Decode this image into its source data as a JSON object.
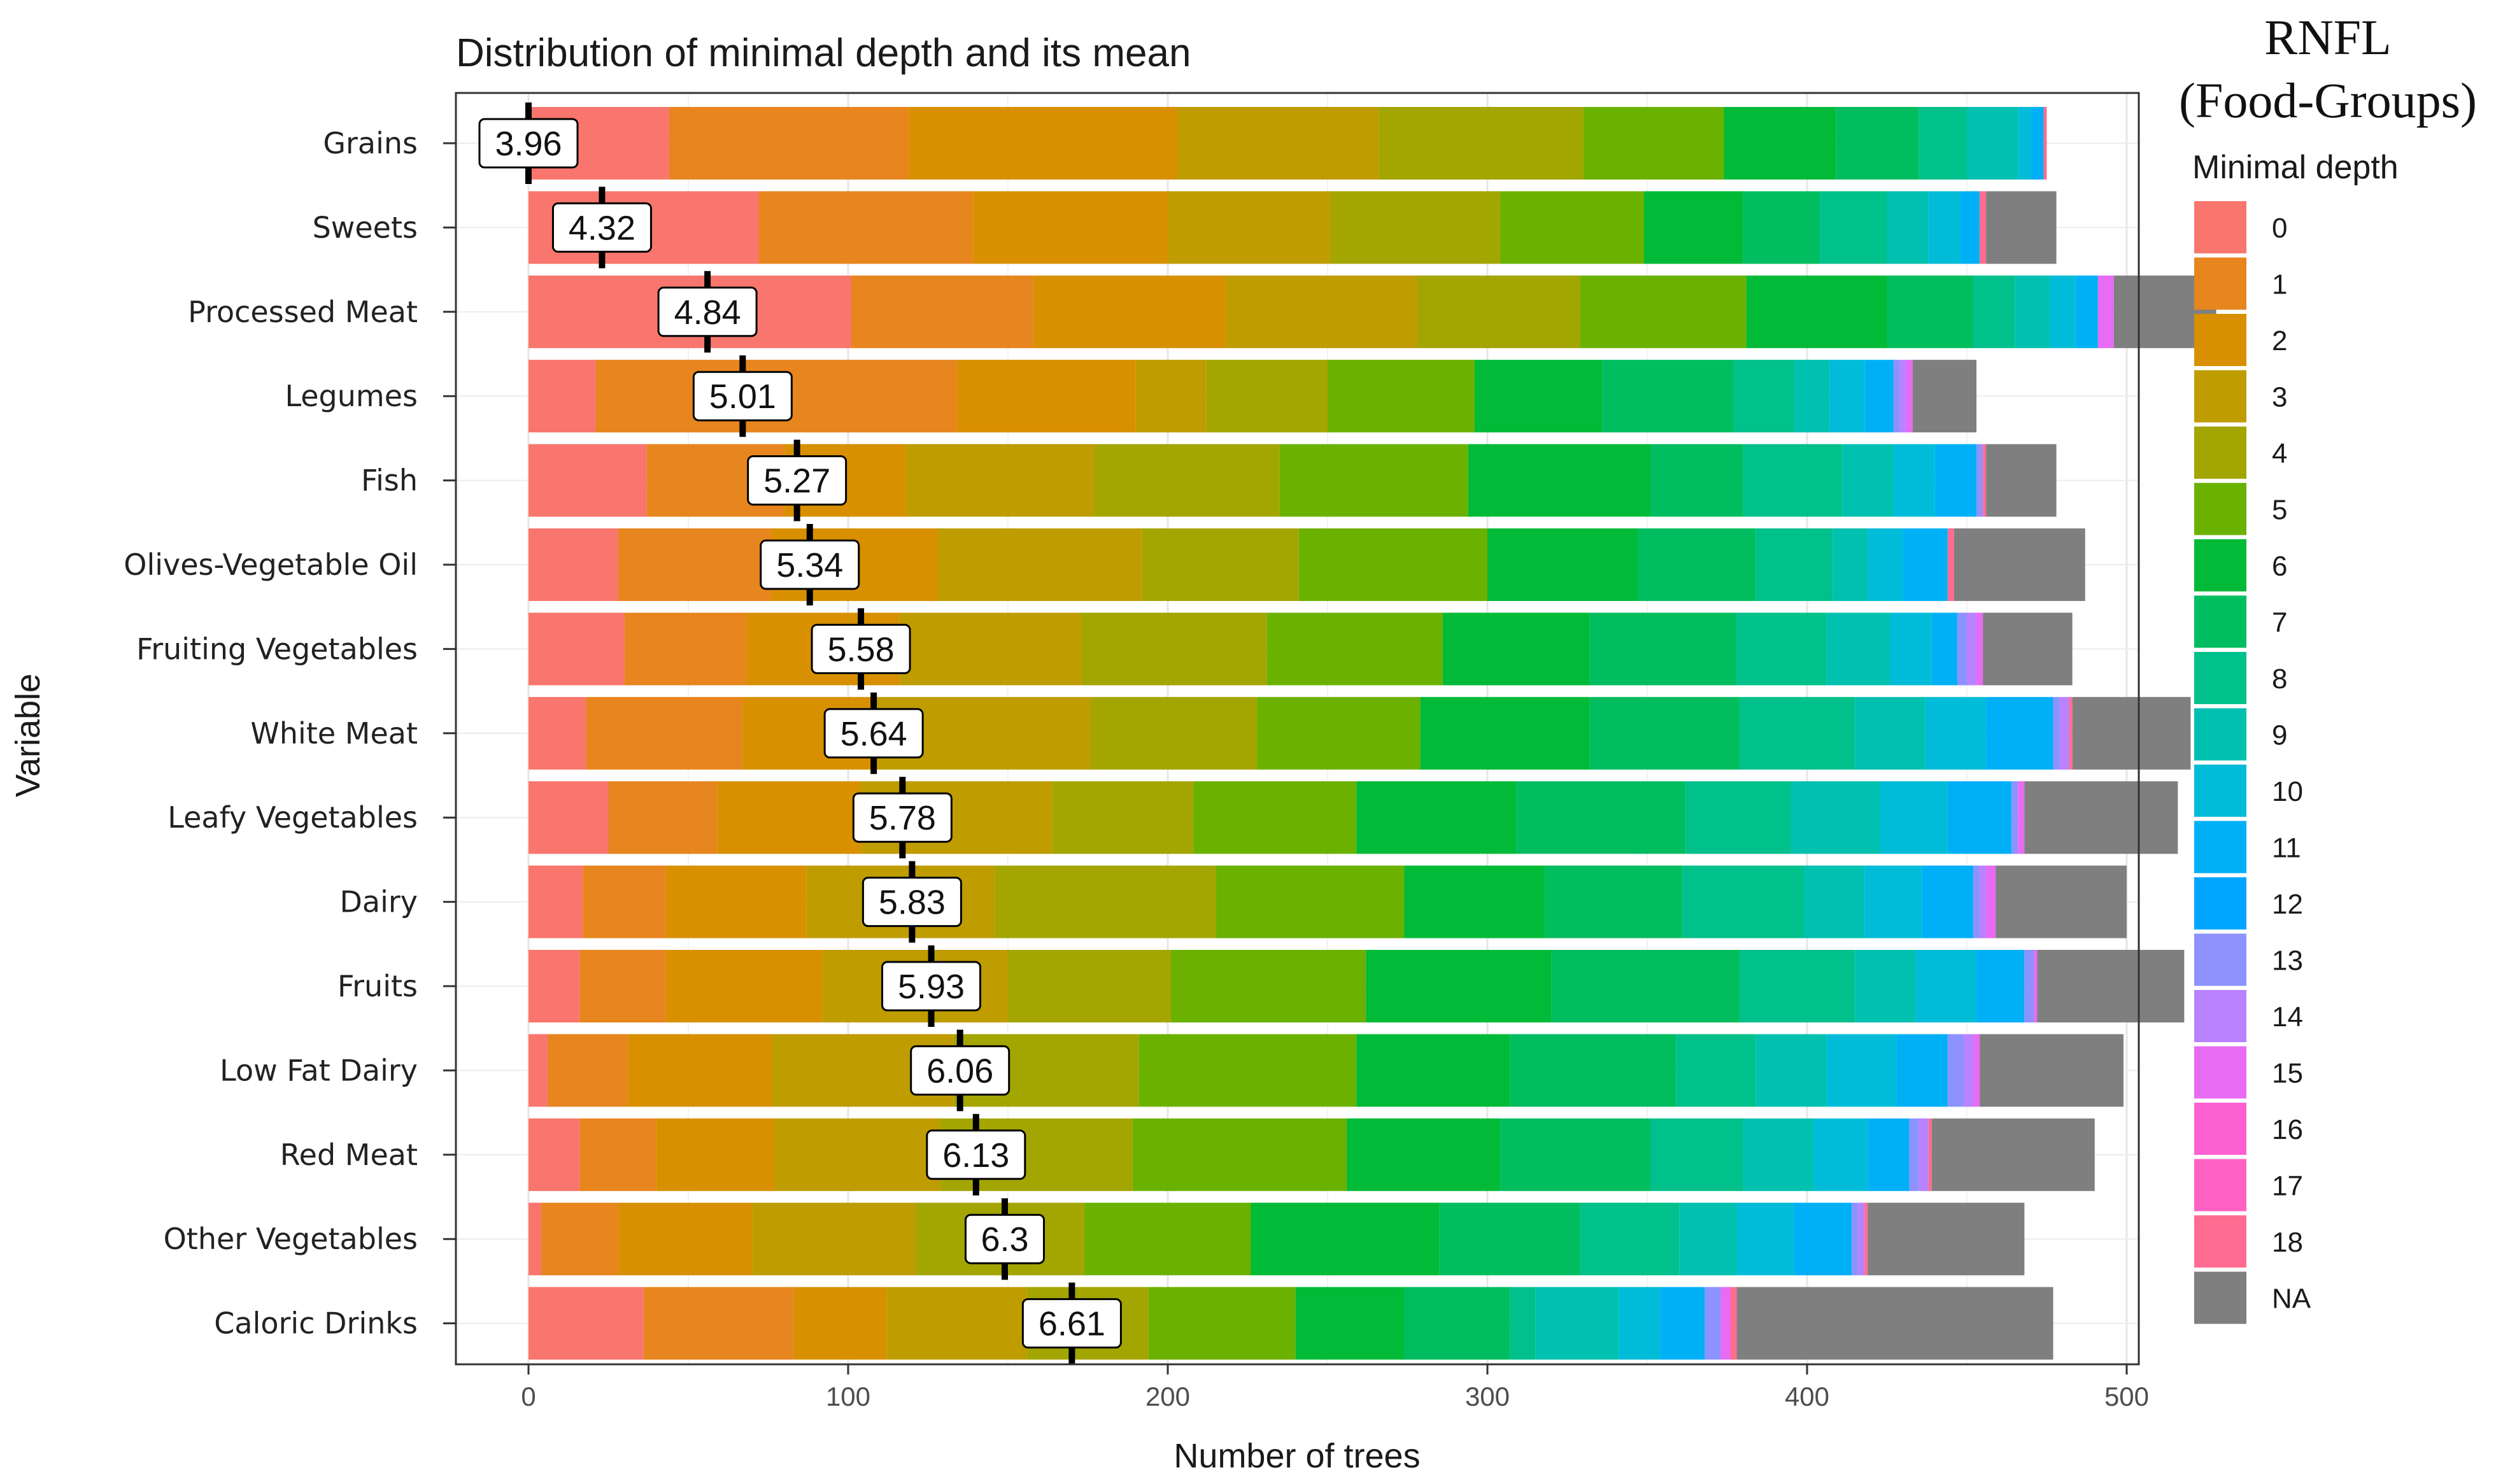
{
  "chart_data": {
    "type": "bar",
    "orientation": "horizontal",
    "stacked": true,
    "title": "Distribution of minimal depth and its mean",
    "overlay_title": [
      "RNFL",
      "(Food-Groups)"
    ],
    "xlabel": "Number of trees",
    "ylabel": "Variable",
    "xlim": [
      -23,
      501
    ],
    "xticks": [
      0,
      100,
      200,
      300,
      400,
      500
    ],
    "grid": true,
    "legend": {
      "title": "Minimal depth",
      "placement": "right",
      "labels": [
        "0",
        "1",
        "2",
        "3",
        "4",
        "5",
        "6",
        "7",
        "8",
        "9",
        "10",
        "11",
        "12",
        "13",
        "14",
        "15",
        "16",
        "17",
        "18",
        "NA"
      ],
      "colors": [
        "#F8766D",
        "#E7851E",
        "#D89000",
        "#BF9C00",
        "#A3A500",
        "#6BB100",
        "#00BA38",
        "#00BD5F",
        "#00C08B",
        "#00C0AF",
        "#00BCD8",
        "#00B0F6",
        "#00A5FF",
        "#8D92FF",
        "#B983FF",
        "#E76BF3",
        "#FD61D1",
        "#FF61C3",
        "#FF6C91",
        "#7F7F7F"
      ]
    },
    "categories": [
      "Grains",
      "Sweets",
      "Processed Meat",
      "Legumes",
      "Fish",
      "Olives-Vegetable Oil",
      "Fruiting  Vegetables",
      "White Meat",
      "Leafy Vegetables",
      "Dairy",
      "Fruits",
      "Low Fat Dairy",
      "Red Meat",
      "Other Vegetables",
      "Caloric Drinks"
    ],
    "means": [
      "3.96",
      "4.32",
      "4.84",
      "5.01",
      "5.27",
      "5.34",
      "5.58",
      "5.64",
      "5.78",
      "5.83",
      "5.93",
      "6.06",
      "6.13",
      "6.3",
      "6.61"
    ],
    "mean_positions": [
      0,
      23,
      56,
      67,
      84,
      88,
      104,
      108,
      117,
      120,
      126,
      135,
      140,
      149,
      170
    ],
    "segments": [
      [
        44,
        75,
        84,
        63,
        64,
        44,
        35,
        26,
        15,
        16,
        4,
        4,
        0,
        0,
        0,
        0,
        0,
        0,
        1,
        0
      ],
      [
        72,
        67,
        61,
        51,
        53,
        45,
        31,
        24,
        21,
        13,
        10,
        6,
        0,
        0,
        0,
        0,
        0,
        0,
        2,
        22
      ],
      [
        101,
        57,
        60,
        60,
        51,
        52,
        44,
        27,
        13,
        11,
        8,
        7,
        0,
        0,
        0,
        5,
        0,
        0,
        0,
        32
      ],
      [
        21,
        113,
        56,
        22,
        38,
        46,
        40,
        41,
        19,
        11,
        11,
        9,
        0,
        2,
        2,
        2,
        0,
        0,
        0,
        20
      ],
      [
        37,
        43,
        38,
        59,
        58,
        59,
        57,
        29,
        31,
        16,
        13,
        13,
        0,
        2,
        0,
        0,
        0,
        0,
        1,
        22
      ],
      [
        28,
        48,
        52,
        64,
        49,
        59,
        47,
        37,
        24,
        11,
        11,
        14,
        0,
        0,
        0,
        0,
        0,
        0,
        2,
        41
      ],
      [
        30,
        38,
        48,
        57,
        58,
        55,
        46,
        46,
        28,
        20,
        13,
        8,
        0,
        3,
        3,
        2,
        0,
        0,
        0,
        28
      ],
      [
        18,
        49,
        42,
        67,
        52,
        51,
        53,
        47,
        36,
        22,
        19,
        21,
        0,
        2,
        3,
        0,
        0,
        0,
        1,
        37
      ],
      [
        25,
        34,
        45,
        60,
        44,
        51,
        50,
        53,
        33,
        28,
        21,
        20,
        0,
        2,
        0,
        2,
        0,
        0,
        0,
        48
      ],
      [
        17,
        26,
        44,
        59,
        69,
        59,
        44,
        43,
        38,
        19,
        18,
        16,
        0,
        2,
        2,
        3,
        0,
        0,
        0,
        41
      ],
      [
        16,
        27,
        49,
        58,
        51,
        61,
        58,
        59,
        36,
        19,
        19,
        15,
        0,
        3,
        0,
        1,
        0,
        0,
        0,
        46
      ],
      [
        6,
        25,
        45,
        57,
        58,
        68,
        48,
        52,
        25,
        22,
        22,
        16,
        0,
        5,
        3,
        2,
        0,
        0,
        0,
        45
      ],
      [
        16,
        24,
        37,
        52,
        60,
        67,
        48,
        47,
        29,
        22,
        17,
        13,
        0,
        3,
        3,
        0,
        0,
        0,
        1,
        51
      ],
      [
        4,
        24,
        42,
        51,
        53,
        52,
        59,
        44,
        31,
        18,
        18,
        18,
        0,
        2,
        2,
        0,
        0,
        0,
        1,
        49
      ],
      [
        36,
        47,
        29,
        44,
        38,
        46,
        34,
        33,
        8,
        26,
        13,
        14,
        0,
        5,
        0,
        3,
        0,
        0,
        2,
        99
      ]
    ]
  }
}
